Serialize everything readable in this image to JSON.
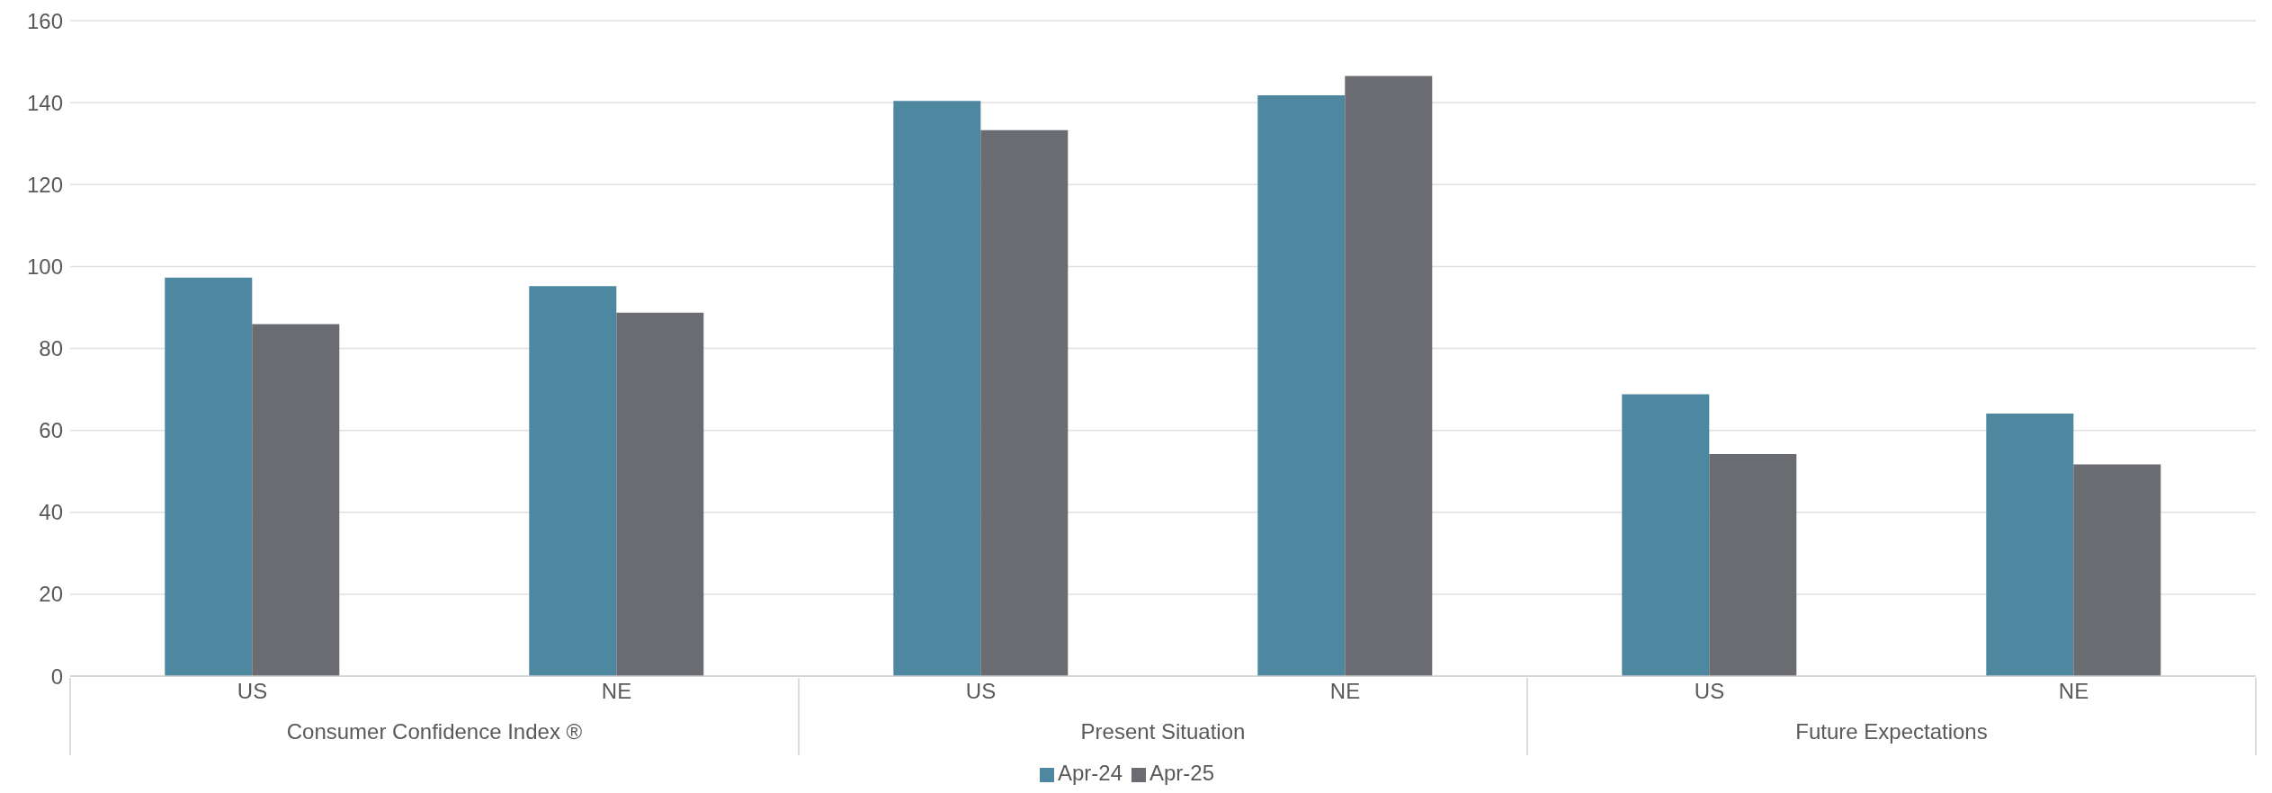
{
  "chart_data": {
    "type": "bar",
    "categories": [
      "US",
      "NE",
      "US",
      "NE",
      "US",
      "NE"
    ],
    "annotations": [
      "Consumer Confidence Index ®",
      "Present Situation",
      "Future Expectations"
    ],
    "series": [
      {
        "name": "Apr-24",
        "color": "#4d87a0",
        "values": [
          97.3,
          95.2,
          140.4,
          141.8,
          68.8,
          64.1
        ]
      },
      {
        "name": "Apr-25",
        "color": "#6b6c71",
        "values": [
          85.9,
          88.7,
          133.3,
          146.5,
          54.2,
          51.7
        ]
      }
    ],
    "ylim": [
      0,
      160
    ],
    "yticks": [
      0,
      20,
      40,
      60,
      80,
      100,
      120,
      140,
      160
    ],
    "grid": "y",
    "legend": "bottom"
  }
}
